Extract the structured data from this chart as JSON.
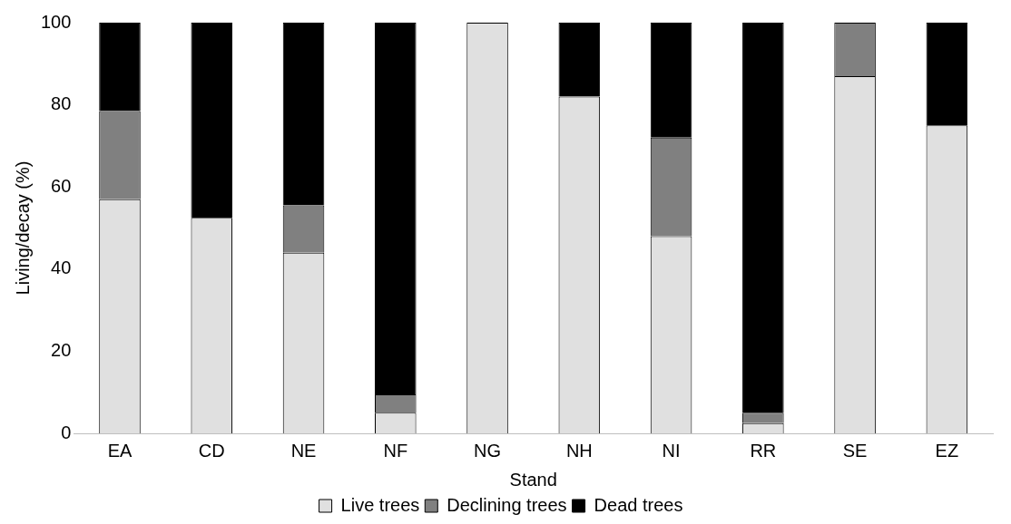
{
  "chart_data": {
    "type": "bar",
    "stacked": true,
    "xlabel": "Stand",
    "ylabel": "Living/decay (%)",
    "categories": [
      "EA",
      "CD",
      "NE",
      "NF",
      "NG",
      "NH",
      "NI",
      "RR",
      "SE",
      "EZ"
    ],
    "series": [
      {
        "name": "Live trees",
        "color": "#e0e0e0",
        "values": [
          57,
          52.5,
          44,
          5,
          100,
          82,
          48,
          2.5,
          87,
          75
        ]
      },
      {
        "name": "Declining trees",
        "color": "#808080",
        "values": [
          21.5,
          0,
          11.5,
          4.5,
          0,
          0,
          24,
          2.5,
          13,
          0
        ]
      },
      {
        "name": "Dead trees",
        "color": "#000000",
        "values": [
          21.5,
          47.5,
          44.5,
          90.5,
          0,
          18,
          28,
          95,
          0,
          25
        ]
      }
    ],
    "ylim": [
      0,
      100
    ],
    "yticks": [
      0,
      20,
      40,
      60,
      80,
      100
    ],
    "grid": false,
    "legend": "bottom"
  }
}
